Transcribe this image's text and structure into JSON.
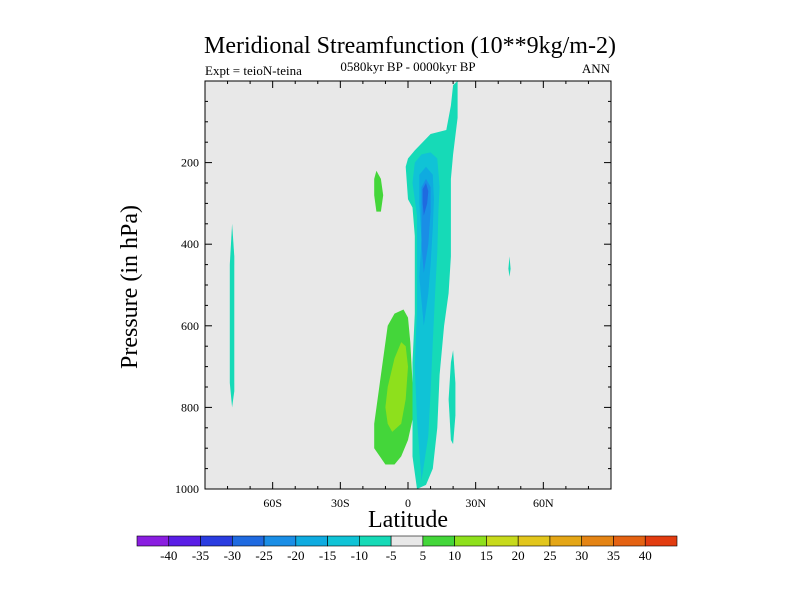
{
  "chart_data": {
    "type": "heatmap",
    "title": "Meridional Streamfunction (10**9kg/m-2)",
    "left_label": "Expt = teioN-teina",
    "center_label": "0580kyr BP - 0000kyr BP",
    "right_label": "ANN",
    "xlabel": "Latitude",
    "ylabel": "Pressure (in hPa)",
    "xlim": [
      -90,
      90
    ],
    "ylim": [
      1000,
      0
    ],
    "x_ticks": [
      {
        "value": -60,
        "label": "60S"
      },
      {
        "value": -30,
        "label": "30S"
      },
      {
        "value": 0,
        "label": "0"
      },
      {
        "value": 30,
        "label": "30N"
      },
      {
        "value": 60,
        "label": "60N"
      }
    ],
    "y_ticks": [
      {
        "value": 200,
        "label": "200"
      },
      {
        "value": 400,
        "label": "400"
      },
      {
        "value": 600,
        "label": "600"
      },
      {
        "value": 800,
        "label": "800"
      },
      {
        "value": 1000,
        "label": "1000"
      }
    ],
    "background_color": "#e8e8e8",
    "colorbar": {
      "labels": [
        "-40",
        "-35",
        "-30",
        "-25",
        "-20",
        "-15",
        "-10",
        "-5",
        "5",
        "10",
        "15",
        "20",
        "25",
        "30",
        "35",
        "40"
      ],
      "colors": [
        "#8a1ee0",
        "#5a1ee6",
        "#2a3ce0",
        "#1f6ae0",
        "#1a8ee6",
        "#0fabe0",
        "#10c3d6",
        "#16dab7",
        "#e8e8e8",
        "#44d63a",
        "#8ee01c",
        "#c7da1c",
        "#e2c61c",
        "#e4a616",
        "#e48414",
        "#e46212",
        "#e23c10"
      ]
    },
    "contours": [
      {
        "color": "#16dab7",
        "points": [
          [
            4,
            1000
          ],
          [
            8,
            990
          ],
          [
            11,
            950
          ],
          [
            13,
            850
          ],
          [
            14,
            720
          ],
          [
            16,
            600
          ],
          [
            18,
            520
          ],
          [
            19,
            430
          ],
          [
            19,
            330
          ],
          [
            19,
            240
          ],
          [
            20,
            180
          ],
          [
            22,
            90
          ],
          [
            22,
            0
          ],
          [
            20,
            10
          ],
          [
            19,
            60
          ],
          [
            17,
            120
          ],
          [
            10,
            130
          ],
          [
            3,
            170
          ],
          [
            0,
            190
          ],
          [
            -1,
            210
          ],
          [
            0,
            290
          ],
          [
            2,
            310
          ],
          [
            3,
            380
          ],
          [
            3,
            470
          ],
          [
            3,
            570
          ],
          [
            2,
            690
          ],
          [
            2,
            800
          ],
          [
            2,
            920
          ]
        ]
      },
      {
        "color": "#16dab7",
        "points": [
          [
            -78,
            350
          ],
          [
            -77,
            430
          ],
          [
            -77,
            560
          ],
          [
            -77,
            680
          ],
          [
            -77,
            760
          ],
          [
            -78,
            800
          ],
          [
            -79,
            740
          ],
          [
            -79,
            600
          ],
          [
            -79,
            450
          ]
        ]
      },
      {
        "color": "#16dab7",
        "points": [
          [
            20,
            660
          ],
          [
            21,
            740
          ],
          [
            21,
            820
          ],
          [
            20,
            890
          ],
          [
            19,
            880
          ],
          [
            18,
            780
          ],
          [
            19,
            690
          ]
        ]
      },
      {
        "color": "#16dab7",
        "points": [
          [
            45,
            430
          ],
          [
            45.5,
            460
          ],
          [
            45,
            480
          ],
          [
            44.5,
            460
          ]
        ]
      },
      {
        "color": "#10c3d6",
        "points": [
          [
            6,
            980
          ],
          [
            9,
            870
          ],
          [
            10,
            760
          ],
          [
            11,
            640
          ],
          [
            12,
            520
          ],
          [
            13,
            420
          ],
          [
            13.5,
            320
          ],
          [
            14,
            260
          ],
          [
            13,
            190
          ],
          [
            10,
            175
          ],
          [
            6,
            180
          ],
          [
            3,
            200
          ],
          [
            2,
            250
          ],
          [
            4,
            330
          ],
          [
            4,
            450
          ],
          [
            4,
            560
          ],
          [
            3,
            700
          ],
          [
            4,
            830
          ]
        ]
      },
      {
        "color": "#0fabe0",
        "points": [
          [
            7,
            600
          ],
          [
            9,
            520
          ],
          [
            10,
            450
          ],
          [
            11,
            360
          ],
          [
            11.5,
            290
          ],
          [
            11,
            230
          ],
          [
            8,
            210
          ],
          [
            5,
            230
          ],
          [
            5,
            300
          ],
          [
            6,
            390
          ],
          [
            5,
            480
          ]
        ]
      },
      {
        "color": "#1a8ee6",
        "points": [
          [
            7,
            470
          ],
          [
            9,
            400
          ],
          [
            10,
            320
          ],
          [
            10,
            260
          ],
          [
            8,
            240
          ],
          [
            6,
            260
          ],
          [
            6,
            330
          ],
          [
            6,
            400
          ]
        ]
      },
      {
        "color": "#1f6ae0",
        "points": [
          [
            7,
            330
          ],
          [
            8.5,
            300
          ],
          [
            9,
            270
          ],
          [
            8,
            250
          ],
          [
            6.5,
            265
          ],
          [
            6.5,
            300
          ]
        ]
      },
      {
        "color": "#44d63a",
        "points": [
          [
            -14,
            220
          ],
          [
            -12,
            240
          ],
          [
            -11,
            280
          ],
          [
            -12,
            320
          ],
          [
            -14,
            320
          ],
          [
            -15,
            280
          ],
          [
            -15,
            240
          ]
        ]
      },
      {
        "color": "#44d63a",
        "points": [
          [
            -6,
            940
          ],
          [
            -3,
            920
          ],
          [
            0,
            880
          ],
          [
            2,
            830
          ],
          [
            2,
            740
          ],
          [
            1,
            640
          ],
          [
            0,
            580
          ],
          [
            -2,
            560
          ],
          [
            -6,
            570
          ],
          [
            -9,
            600
          ],
          [
            -11,
            680
          ],
          [
            -13,
            760
          ],
          [
            -15,
            840
          ],
          [
            -15,
            900
          ],
          [
            -10,
            940
          ]
        ]
      },
      {
        "color": "#8ee01c",
        "points": [
          [
            -7,
            860
          ],
          [
            -3,
            840
          ],
          [
            -1,
            780
          ],
          [
            0,
            700
          ],
          [
            -1,
            650
          ],
          [
            -3,
            640
          ],
          [
            -6,
            680
          ],
          [
            -9,
            750
          ],
          [
            -10,
            800
          ],
          [
            -9,
            840
          ]
        ]
      }
    ]
  }
}
